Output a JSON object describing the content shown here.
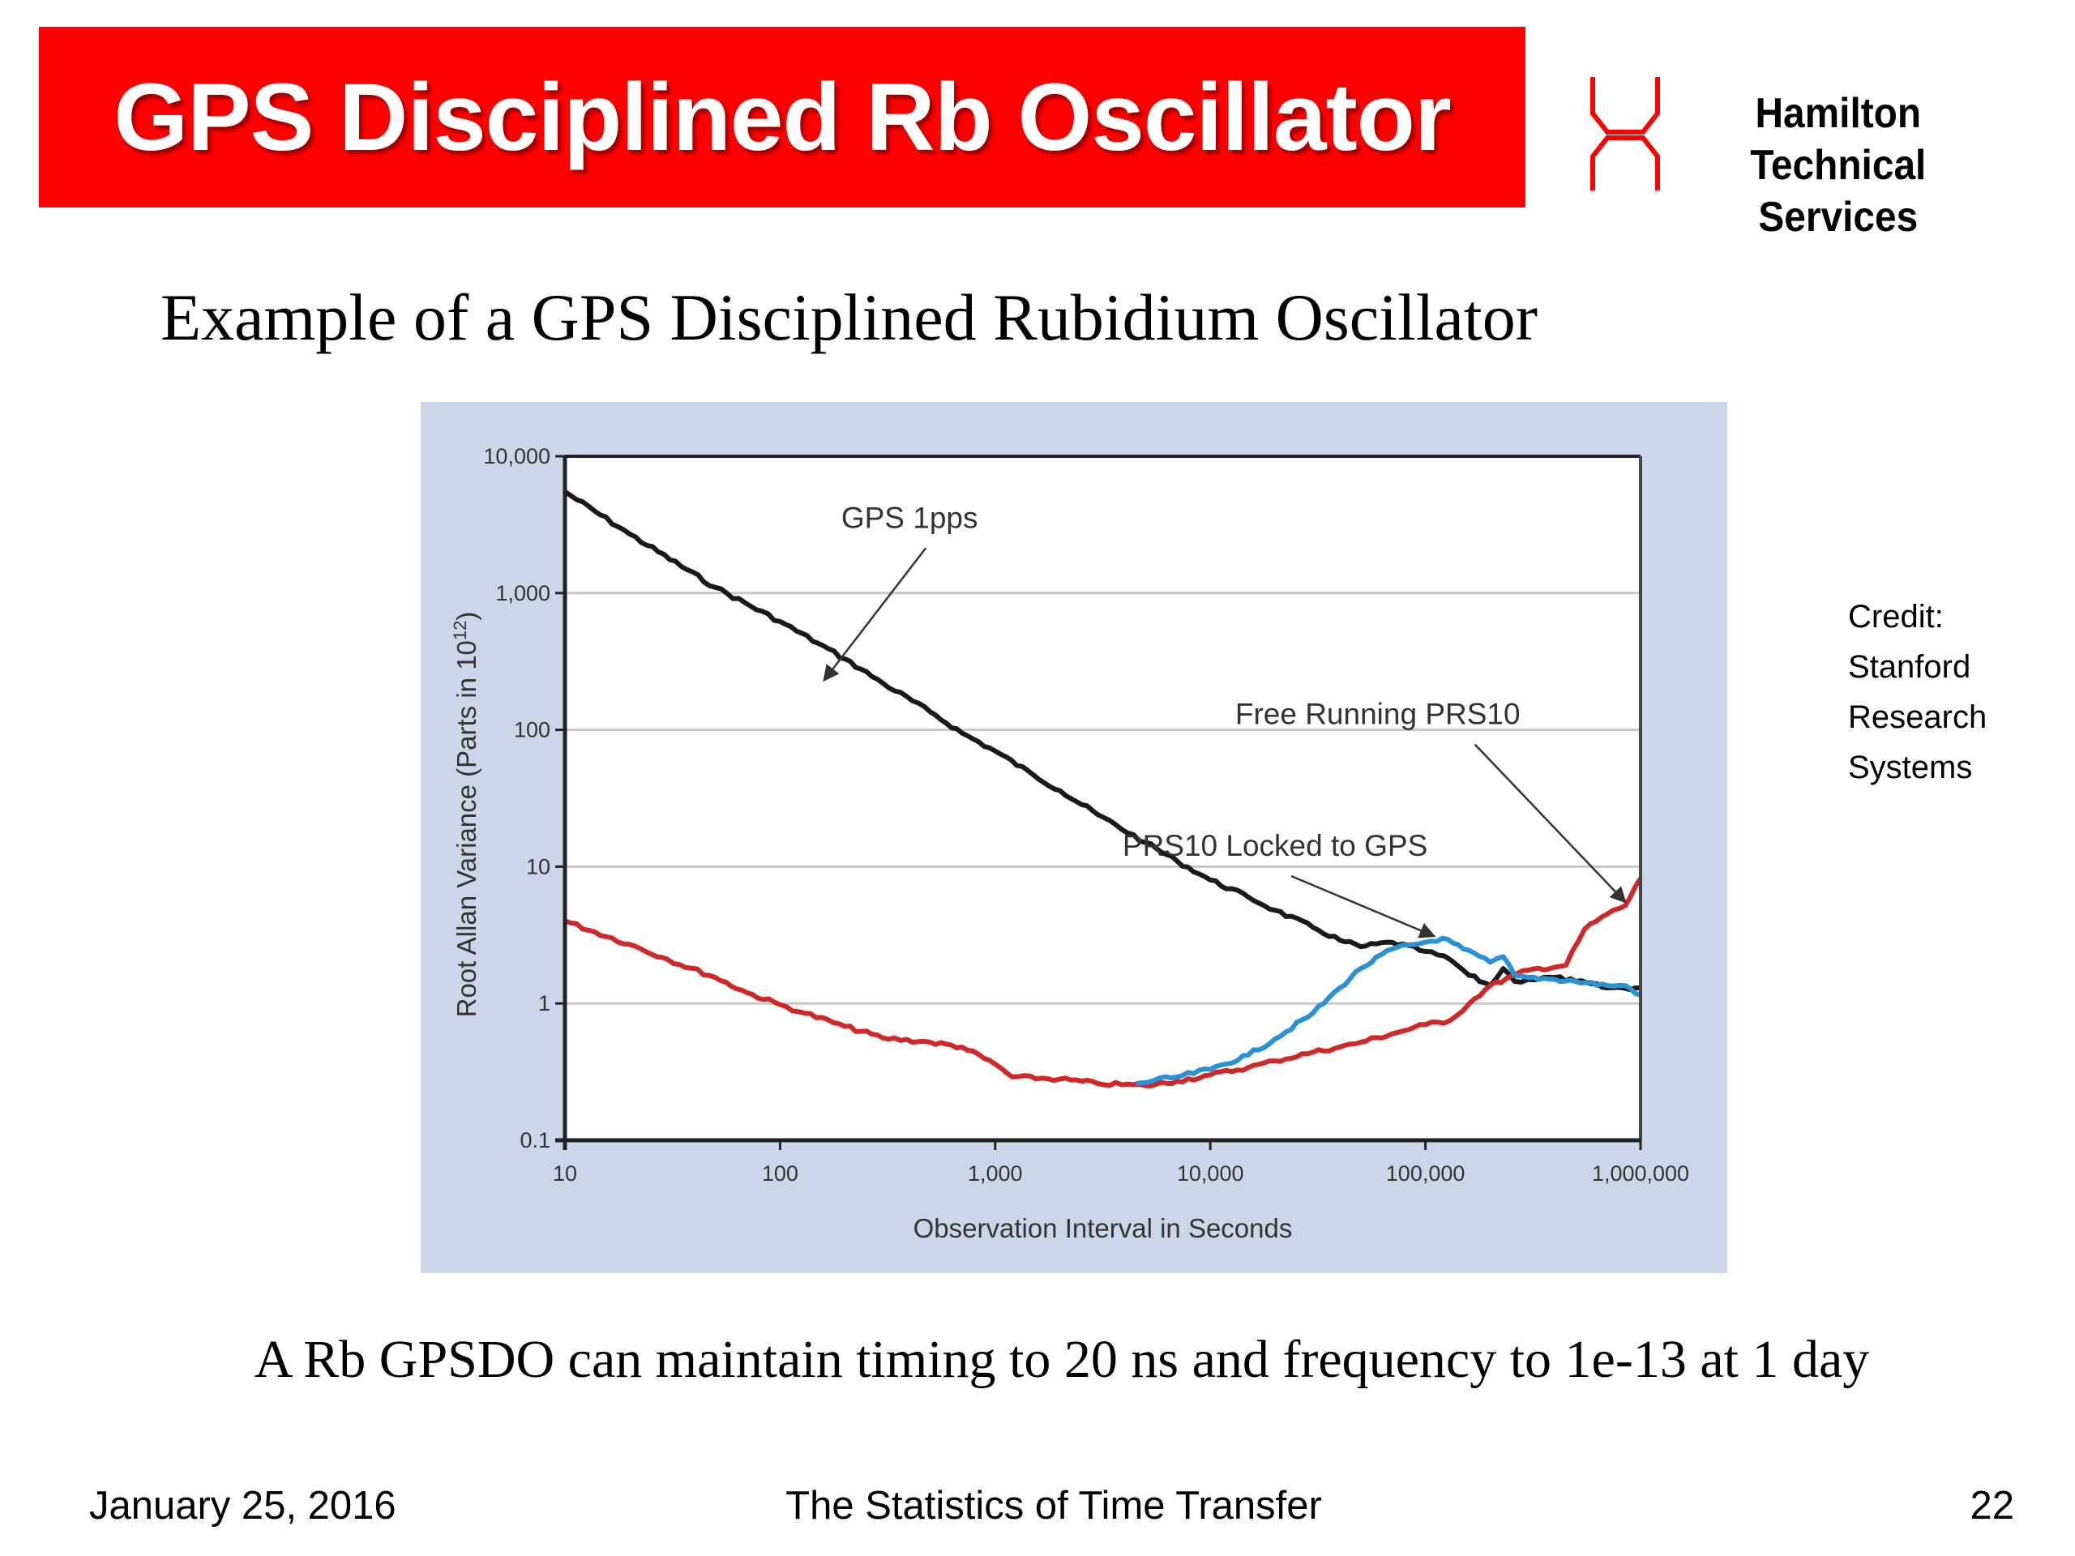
{
  "header": {
    "title": "GPS Disciplined Rb Oscillator",
    "title_bar_color": "#ff0000",
    "logo": {
      "icon": "hamilton-logo-icon",
      "line1": "Hamilton Technical",
      "line2": "Services",
      "icon_color": "#ff0000"
    }
  },
  "subtitle": "Example of a GPS Disciplined Rubidium Oscillator",
  "credit": {
    "lines": [
      "Credit:",
      "Stanford",
      "Research",
      "Systems"
    ]
  },
  "conclusion": "A Rb GPSDO can maintain timing to 20 ns and frequency to 1e-13 at 1 day",
  "footer": {
    "date": "January 25, 2016",
    "title": "The Statistics of Time Transfer",
    "page": "22"
  },
  "chart_data": {
    "type": "line",
    "title": "",
    "xlabel": "Observation Interval in Seconds",
    "ylabel_main": "Root Allan Variance (Parts in 10",
    "ylabel_sup": "12",
    "ylabel_end": ")",
    "xscale": "log",
    "yscale": "log",
    "xlim": [
      10,
      1000000
    ],
    "ylim": [
      0.1,
      10000
    ],
    "grid": "horizontal",
    "background_color": "#cbd6e9",
    "x_ticks": [
      {
        "value": 10,
        "label": "10"
      },
      {
        "value": 100,
        "label": "100"
      },
      {
        "value": 1000,
        "label": "1,000"
      },
      {
        "value": 10000,
        "label": "10,000"
      },
      {
        "value": 100000,
        "label": "100,000"
      },
      {
        "value": 1000000,
        "label": "1,000,000"
      }
    ],
    "y_ticks": [
      {
        "value": 0.1,
        "label": "0.1"
      },
      {
        "value": 1,
        "label": "1"
      },
      {
        "value": 10,
        "label": "10"
      },
      {
        "value": 100,
        "label": "100"
      },
      {
        "value": 1000,
        "label": "1,000"
      },
      {
        "value": 10000,
        "label": "10,000"
      }
    ],
    "series": [
      {
        "name": "GPS 1pps",
        "color": "#1a1a1a",
        "x": [
          10,
          20,
          50,
          100,
          150,
          200,
          300,
          500,
          700,
          1000,
          1500,
          2000,
          3000,
          5000,
          7000,
          10000,
          15000,
          20000,
          30000,
          40000,
          50000,
          70000,
          100000,
          130000,
          160000,
          200000,
          230000,
          260000,
          300000,
          400000,
          500000,
          700000,
          1000000
        ],
        "y": [
          5500,
          2700,
          1100,
          620,
          430,
          330,
          220,
          135,
          95,
          70,
          47,
          36,
          24,
          15,
          11,
          8,
          6,
          4.8,
          3.6,
          2.9,
          2.6,
          2.8,
          2.4,
          2.1,
          1.6,
          1.35,
          1.8,
          1.45,
          1.5,
          1.55,
          1.45,
          1.3,
          1.3
        ]
      },
      {
        "name": "Free Running PRS10",
        "color": "#d02828",
        "x": [
          10,
          20,
          30,
          50,
          70,
          100,
          130,
          200,
          300,
          500,
          700,
          1000,
          1200,
          2000,
          3000,
          5000,
          7000,
          10000,
          15000,
          20000,
          30000,
          40000,
          50000,
          70000,
          100000,
          130000,
          160000,
          200000,
          300000,
          450000,
          550000,
          700000,
          850000,
          1000000
        ],
        "y": [
          4.0,
          2.7,
          2.1,
          1.55,
          1.2,
          0.98,
          0.85,
          0.68,
          0.56,
          0.52,
          0.48,
          0.36,
          0.29,
          0.28,
          0.26,
          0.25,
          0.27,
          0.3,
          0.34,
          0.38,
          0.44,
          0.48,
          0.52,
          0.6,
          0.7,
          0.75,
          1.0,
          1.35,
          1.75,
          1.9,
          3.5,
          4.5,
          5.2,
          8.2
        ]
      },
      {
        "name": "PRS10 Locked to GPS",
        "color": "#2a92d4",
        "x": [
          4500,
          7000,
          10000,
          15000,
          20000,
          30000,
          40000,
          50000,
          70000,
          100000,
          120000,
          150000,
          200000,
          230000,
          260000,
          300000,
          400000,
          500000,
          700000,
          850000,
          1000000
        ],
        "y": [
          0.26,
          0.29,
          0.33,
          0.42,
          0.55,
          0.85,
          1.3,
          1.8,
          2.5,
          2.8,
          3.0,
          2.5,
          2.0,
          2.2,
          1.6,
          1.55,
          1.5,
          1.45,
          1.35,
          1.35,
          1.15
        ]
      }
    ],
    "annotations": [
      {
        "text": "GPS 1pps",
        "target_series": "GPS 1pps",
        "label_at": [
          400,
          3000
        ],
        "arrow_to": [
          160,
          230
        ]
      },
      {
        "text": "Free Running PRS10",
        "target_series": "Free Running PRS10",
        "label_at": [
          60000,
          110
        ],
        "arrow_to": [
          850000,
          5.5
        ]
      },
      {
        "text": "PRS10 Locked to GPS",
        "target_series": "PRS10 Locked to GPS",
        "label_at": [
          20000,
          12
        ],
        "arrow_to": [
          110000,
          3.1
        ]
      }
    ]
  }
}
